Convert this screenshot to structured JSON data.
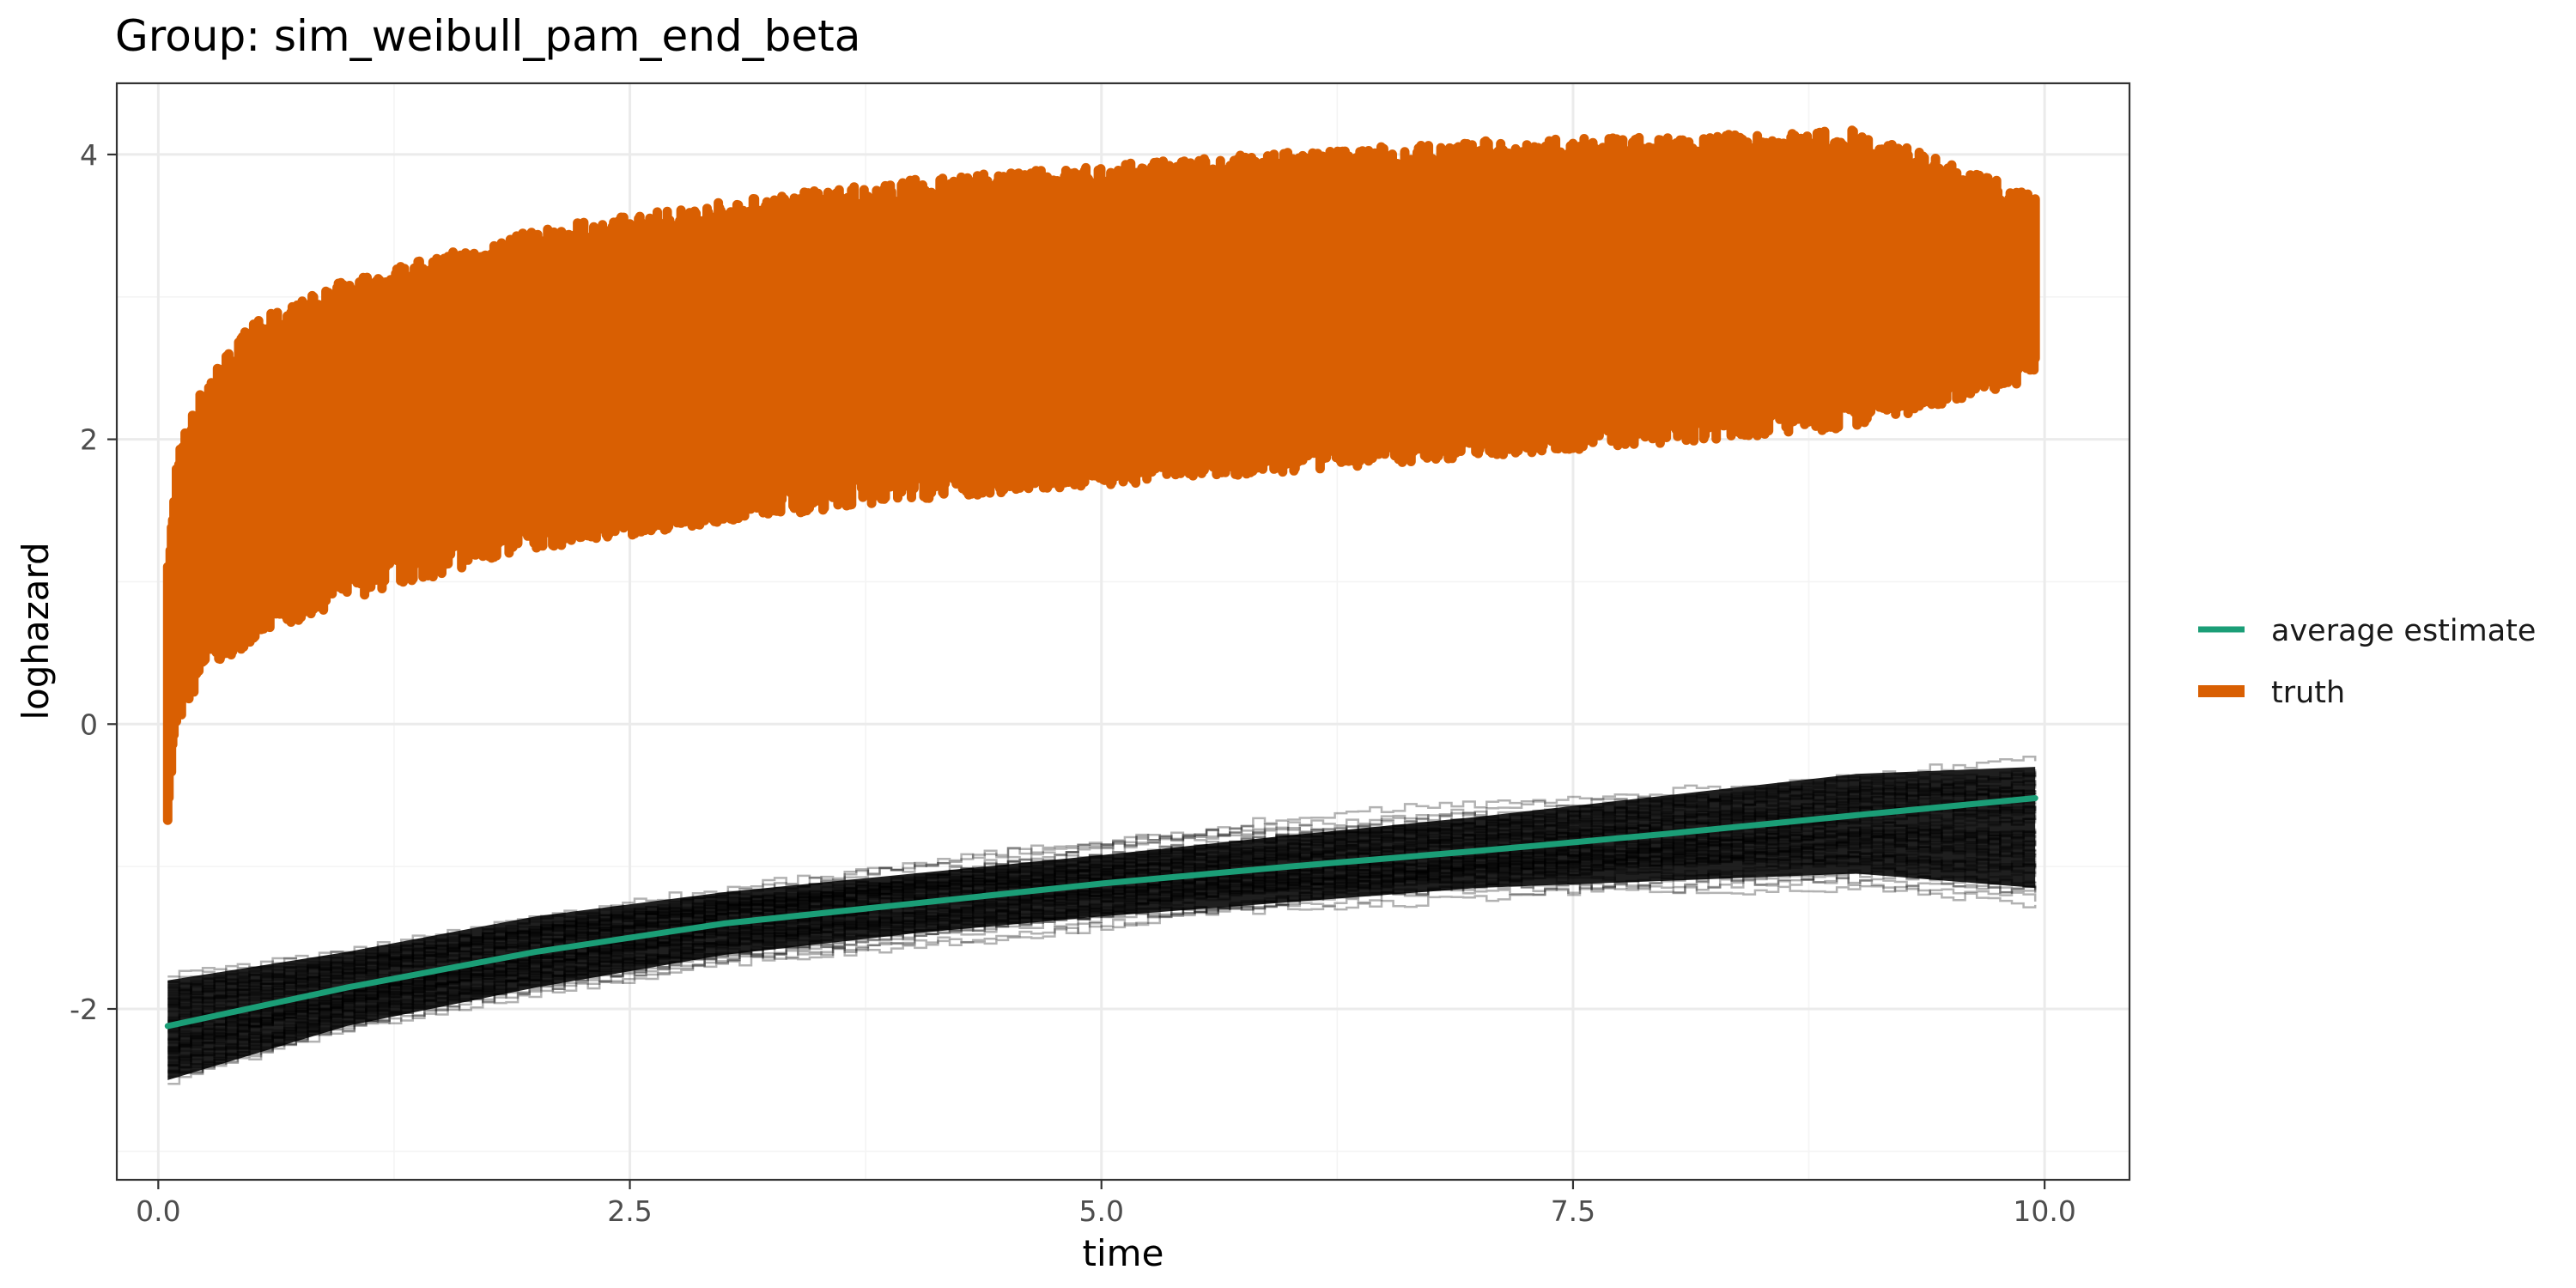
{
  "chart_data": {
    "type": "line",
    "title": "Group: sim_weibull_pam_end_beta",
    "xlabel": "time",
    "ylabel": "loghazard",
    "xlim": [
      -0.22,
      10.45
    ],
    "ylim": [
      -3.2,
      4.5
    ],
    "x_ticks": [
      0.0,
      2.5,
      5.0,
      7.5,
      10.0
    ],
    "x_tick_labels": [
      "0.0",
      "2.5",
      "5.0",
      "7.5",
      "10.0"
    ],
    "y_ticks": [
      -2,
      0,
      2,
      4
    ],
    "y_tick_labels": [
      "-2",
      "0",
      "2",
      "4"
    ],
    "grid": true,
    "legend_position": "right",
    "series": [
      {
        "name": "average estimate",
        "color": "#1b9e77",
        "x": [
          0.05,
          1.0,
          2.0,
          3.0,
          4.0,
          5.0,
          6.0,
          7.0,
          8.0,
          9.0,
          9.95
        ],
        "y": [
          -2.12,
          -1.85,
          -1.6,
          -1.4,
          -1.26,
          -1.12,
          -1.0,
          -0.89,
          -0.77,
          -0.64,
          -0.52
        ]
      },
      {
        "name": "truth",
        "color": "#d95f02",
        "x": [
          0.05,
          0.1,
          0.25,
          0.5,
          1.0,
          2.0,
          3.0,
          4.0,
          5.0,
          6.0,
          7.0,
          8.0,
          9.0,
          9.95
        ],
        "y_lower": [
          -0.55,
          0.1,
          0.5,
          0.7,
          1.0,
          1.35,
          1.55,
          1.7,
          1.8,
          1.9,
          2.0,
          2.1,
          2.2,
          2.55
        ],
        "y_upper": [
          1.0,
          1.8,
          2.3,
          2.7,
          3.0,
          3.35,
          3.55,
          3.7,
          3.8,
          3.9,
          3.97,
          4.0,
          4.05,
          3.6
        ]
      },
      {
        "color": "#000000",
        "x": [
          0.05,
          1.0,
          2.0,
          3.0,
          4.0,
          5.0,
          6.0,
          7.0,
          8.0,
          9.0,
          9.95
        ],
        "y_lower": [
          -2.5,
          -2.12,
          -1.85,
          -1.62,
          -1.47,
          -1.35,
          -1.25,
          -1.15,
          -1.1,
          -1.05,
          -1.15
        ],
        "y_upper": [
          -1.8,
          -1.6,
          -1.35,
          -1.18,
          -1.05,
          -0.92,
          -0.78,
          -0.65,
          -0.5,
          -0.35,
          -0.3
        ]
      }
    ]
  }
}
